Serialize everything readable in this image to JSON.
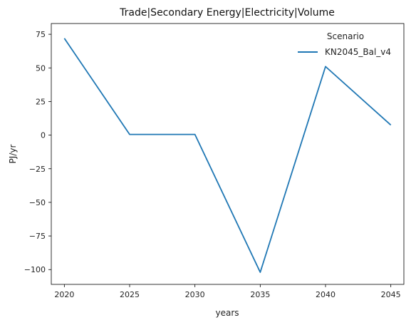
{
  "chart_data": {
    "type": "line",
    "title": "Trade|Secondary Energy|Electricity|Volume",
    "xlabel": "years",
    "ylabel": "PJ/yr",
    "x": [
      2020,
      2025,
      2030,
      2035,
      2040,
      2045
    ],
    "series": [
      {
        "name": "KN2045_Bal_v4",
        "values": [
          72,
          0.5,
          0.5,
          -102,
          51,
          7.5
        ],
        "color": "#1f77b4"
      }
    ],
    "xticks": [
      2020,
      2025,
      2030,
      2035,
      2040,
      2045
    ],
    "yticks": [
      75,
      50,
      25,
      0,
      -25,
      -50,
      -75,
      -100
    ],
    "xlim": [
      2019,
      2046
    ],
    "ylim": [
      -111,
      83
    ],
    "grid": false,
    "legend": {
      "title": "Scenario",
      "placement": "top-right"
    }
  }
}
